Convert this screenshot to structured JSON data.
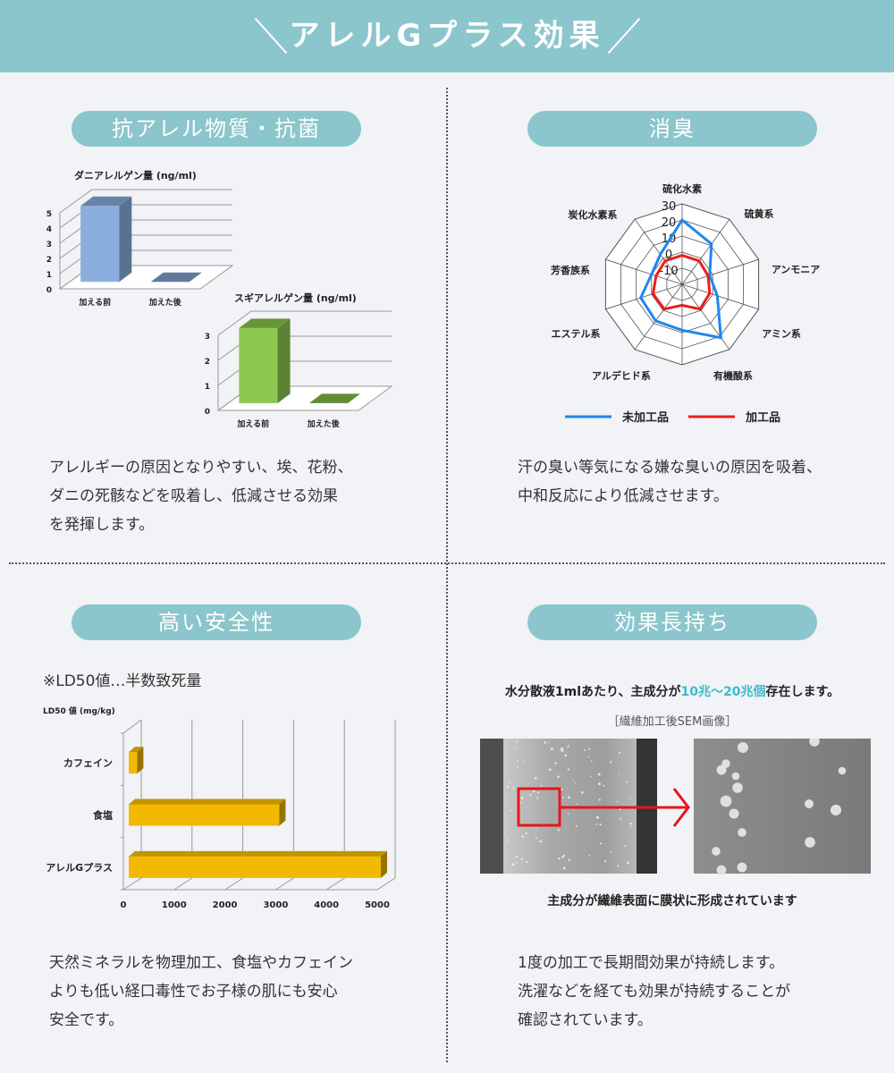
{
  "header": {
    "title": "アレルGプラス効果",
    "bg_color": "#8ac6cc"
  },
  "sections": {
    "allergen": {
      "pill": "抗アレル物質・抗菌",
      "body": "アレルギーの原因となりやすい、埃、花粉、\nダニの死骸などを吸着し、低減させる効果\nを発揮します。"
    },
    "deodorant": {
      "pill": "消臭",
      "body": "汗の臭い等気になる嫌な臭いの原因を吸着、\n中和反応により低減させます。"
    },
    "safety": {
      "pill": "高い安全性",
      "note": "※LD50値…半数致死量",
      "body": "天然ミネラルを物理加工、食塩やカフェイン\nよりも低い経口毒性でお子様の肌にも安心\n安全です。"
    },
    "longlasting": {
      "pill": "効果長持ち",
      "lead_before": "水分散液1mlあたり、主成分が",
      "lead_highlight": "10兆～20兆個",
      "lead_after": "存在します。",
      "highlight_color": "#3bbccc",
      "image_caption": "［繊維加工後SEM画像］",
      "bottom_caption": "主成分が繊維表面に膜状に形成されています",
      "body": "1度の加工で長期間効果が持続します。\n洗濯などを経ても効果が持続することが\n確認されています。"
    }
  },
  "chart_data": [
    {
      "type": "bar",
      "title": "ダニアレルゲン量 (ng/ml)",
      "categories": [
        "加える前",
        "加えた後"
      ],
      "values": [
        5,
        0
      ],
      "yticks": [
        "0",
        "1",
        "2",
        "3",
        "4",
        "5"
      ],
      "ylim": [
        0,
        5
      ],
      "color": "#8aafdf",
      "style": "3d"
    },
    {
      "type": "bar",
      "title": "スギアレルゲン量 (ng/ml)",
      "categories": [
        "加える前",
        "加えた後"
      ],
      "values": [
        3,
        0
      ],
      "yticks": [
        "0",
        "1",
        "2",
        "3"
      ],
      "ylim": [
        0,
        3
      ],
      "color": "#8cc84e",
      "style": "3d"
    },
    {
      "type": "radar",
      "axes": [
        "硫化水素",
        "硫黄系",
        "アンモニア",
        "アミン系",
        "有機酸系",
        "アルデヒド系",
        "エステル系",
        "芳香族系",
        "炭化水素系"
      ],
      "rticks": [
        "30",
        "20",
        "10",
        "0",
        "-10"
      ],
      "rlim": [
        -20,
        30
      ],
      "series": [
        {
          "name": "未加工品",
          "color": "#1e86f0",
          "values": [
            20,
            11,
            -2,
            3,
            21,
            8,
            7,
            0,
            3
          ]
        },
        {
          "name": "加工品",
          "color": "#ee1c1c",
          "values": [
            -2,
            -2,
            -3,
            -2,
            -1,
            -1,
            -1,
            -3,
            -2
          ]
        }
      ],
      "legend": "bottom"
    },
    {
      "type": "bar",
      "orientation": "horizontal",
      "title": "LD50 値 (mg/kg)",
      "categories": [
        "カフェイン",
        "食塩",
        "アレルGプラス"
      ],
      "values": [
        200,
        3000,
        5000
      ],
      "xticks": [
        "0",
        "1000",
        "2000",
        "3000",
        "4000",
        "5000"
      ],
      "xlim": [
        0,
        5000
      ],
      "color": "#f2b900",
      "style": "3d"
    }
  ]
}
